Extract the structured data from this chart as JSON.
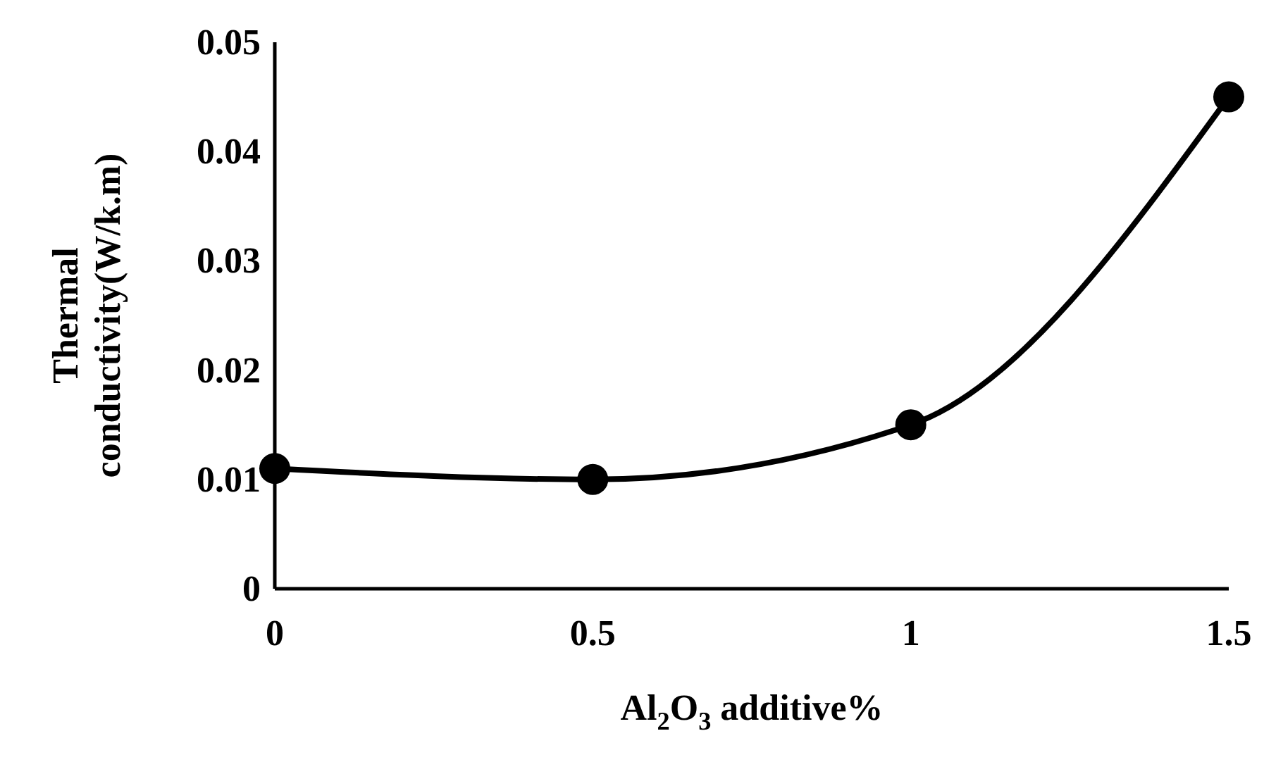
{
  "chart_data": {
    "type": "line",
    "xlabel": "Al$_{2}$O$_{3}$ additive%",
    "ylabel": "Thermal\nconductivity(W/k.m)",
    "x": [
      0,
      0.5,
      1,
      1.5
    ],
    "series": [
      {
        "color": "#000000",
        "values": [
          0.011,
          0.01,
          0.015,
          0.045
        ]
      }
    ],
    "xlim": [
      0,
      1.5
    ],
    "xticks": [
      0,
      0.5,
      1,
      1.5
    ],
    "ylim": [
      0,
      0.05
    ],
    "yticks": [
      0,
      0.01,
      0.02,
      0.03,
      0.04,
      0.05
    ],
    "grid": false,
    "marker": "circle",
    "line_style": "solid"
  }
}
